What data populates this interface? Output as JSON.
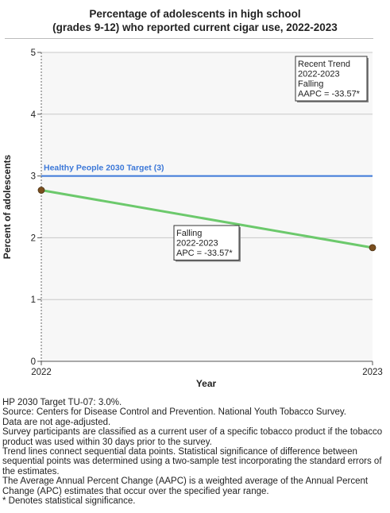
{
  "chart_data": {
    "type": "line",
    "title": "Percentage of adolescents in high school",
    "subtitle": "(grades 9-12) who reported current cigar use, 2022-2023",
    "xlabel": "Year",
    "ylabel": "Percent of adolescents",
    "categories": [
      "2022",
      "2023"
    ],
    "x": [
      2022,
      2023
    ],
    "ylim": [
      0,
      5
    ],
    "yticks": [
      "0",
      "1",
      "2",
      "3",
      "4",
      "5"
    ],
    "grid": true,
    "series": [
      {
        "values": [
          2.77,
          1.84
        ],
        "color": "#6cc96c",
        "marker_color": "#7a4e1e"
      }
    ],
    "target": {
      "label": "Healthy People 2030 Target (3)",
      "value": 3,
      "color": "#3c78d8"
    },
    "annotations": {
      "segment": {
        "lines": [
          "Falling",
          "2022-2023",
          "APC = -33.57*"
        ]
      },
      "trend": {
        "lines": [
          "Recent Trend",
          "2022-2023",
          "Falling",
          "AAPC = -33.57*"
        ]
      }
    }
  },
  "notes": [
    "HP 2030 Target TU-07: 3.0%.",
    "Source: Centers for Disease Control and Prevention. National Youth Tobacco Survey.",
    "Data are not age-adjusted.",
    "Survey participants are classified as a current user of a specific tobacco product if the tobacco product was used within 30 days prior to the survey.",
    "Trend lines connect sequential data points. Statistical significance of difference between sequential points was determined using a two-sample test incorporating the standard errors of the estimates.",
    "The Average Annual Percent Change (AAPC) is a weighted average of the Annual Percent Change (APC) estimates that occur over the specified year range.",
    "* Denotes statistical significance."
  ]
}
